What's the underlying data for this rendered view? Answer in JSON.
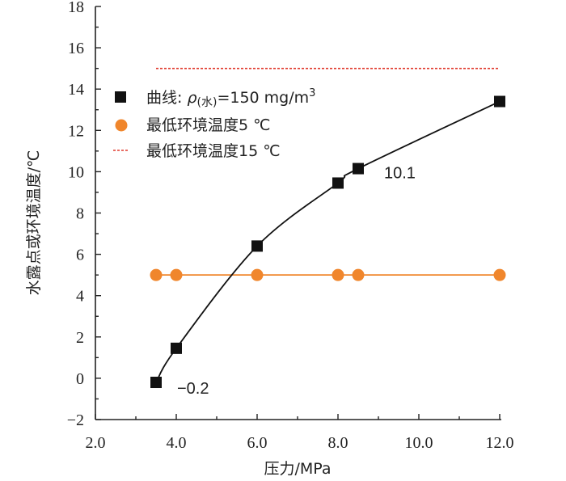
{
  "chart_data": {
    "type": "line",
    "title": "",
    "xlabel": "压力/MPa",
    "ylabel": "水露点或环境温度/℃",
    "xlim": [
      2.0,
      12.0
    ],
    "ylim": [
      -2,
      18
    ],
    "x_ticks": [
      2.0,
      4.0,
      6.0,
      8.0,
      10.0,
      12.0
    ],
    "x_tick_labels": [
      "2.0",
      "4.0",
      "6.0",
      "8.0",
      "10.0",
      "12.0"
    ],
    "y_ticks": [
      -2,
      0,
      2,
      4,
      6,
      8,
      10,
      12,
      14,
      16,
      18
    ],
    "y_tick_labels": [
      "−2",
      "0",
      "2",
      "4",
      "6",
      "8",
      "10",
      "12",
      "14",
      "16",
      "18"
    ],
    "grid": false,
    "legend_position": "upper-left",
    "legend": {
      "curve_prefix": "曲线: ",
      "rho": "ρ",
      "rho_sub": "(水)",
      "curve_value": "=150 mg/m",
      "curve_sup": "3",
      "min5": "最低环境温度5 ℃",
      "min15": "最低环境温度15 ℃"
    },
    "series": [
      {
        "marker": "square",
        "color": "#111111",
        "x": [
          3.5,
          4.0,
          6.0,
          8.0,
          8.5,
          12.0
        ],
        "y": [
          -0.2,
          1.45,
          6.4,
          9.45,
          10.15,
          13.4
        ]
      },
      {
        "marker": "circle",
        "color": "#f0862c",
        "x": [
          3.5,
          4.0,
          6.0,
          8.0,
          8.5,
          12.0
        ],
        "y": [
          5.0,
          5.0,
          5.0,
          5.0,
          5.0,
          5.0
        ]
      },
      {
        "marker": "none",
        "color": "#e03a2e",
        "dash": true,
        "x": [
          3.5,
          12.0
        ],
        "y": [
          15.0,
          15.0
        ]
      }
    ],
    "annotations": [
      {
        "text": "−0.2",
        "x": 3.5,
        "y": -0.2
      },
      {
        "text": "10.1",
        "x": 8.5,
        "y": 10.15
      }
    ]
  }
}
